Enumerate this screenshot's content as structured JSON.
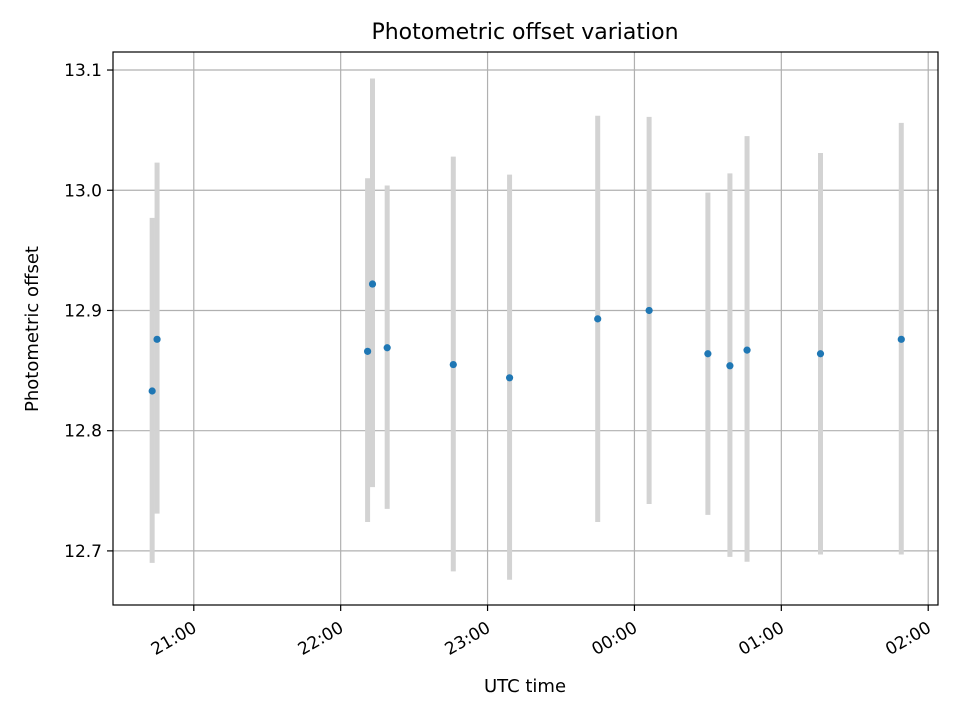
{
  "chart_data": {
    "type": "scatter",
    "title": "Photometric offset variation",
    "xlabel": "UTC time",
    "ylabel": "Photometric offset",
    "x_tick_labels": [
      "21:00",
      "22:00",
      "23:00",
      "00:00",
      "01:00",
      "02:00"
    ],
    "y_tick_labels": [
      "12.7",
      "12.8",
      "12.9",
      "13.0",
      "13.1"
    ],
    "ylim": [
      12.655,
      13.115
    ],
    "xlim": [
      "20:27",
      "02:04"
    ],
    "grid": true,
    "marker_color": "#1f77b4",
    "errorbar_color": "#d3d3d3",
    "points": [
      {
        "time": "20:43",
        "y": 12.833,
        "ylow": 12.69,
        "yhigh": 12.977
      },
      {
        "time": "20:45",
        "y": 12.876,
        "ylow": 12.731,
        "yhigh": 13.023
      },
      {
        "time": "22:11",
        "y": 12.866,
        "ylow": 12.724,
        "yhigh": 13.01
      },
      {
        "time": "22:13",
        "y": 12.922,
        "ylow": 12.753,
        "yhigh": 13.093
      },
      {
        "time": "22:19",
        "y": 12.869,
        "ylow": 12.735,
        "yhigh": 13.004
      },
      {
        "time": "22:46",
        "y": 12.855,
        "ylow": 12.683,
        "yhigh": 13.028
      },
      {
        "time": "23:09",
        "y": 12.844,
        "ylow": 12.676,
        "yhigh": 13.013
      },
      {
        "time": "23:45",
        "y": 12.893,
        "ylow": 12.724,
        "yhigh": 13.062
      },
      {
        "time": "00:06",
        "y": 12.9,
        "ylow": 12.739,
        "yhigh": 13.061
      },
      {
        "time": "00:30",
        "y": 12.864,
        "ylow": 12.73,
        "yhigh": 12.998
      },
      {
        "time": "00:39",
        "y": 12.854,
        "ylow": 12.695,
        "yhigh": 13.014
      },
      {
        "time": "00:46",
        "y": 12.867,
        "ylow": 12.691,
        "yhigh": 13.045
      },
      {
        "time": "01:16",
        "y": 12.864,
        "ylow": 12.697,
        "yhigh": 13.031
      },
      {
        "time": "01:49",
        "y": 12.876,
        "ylow": 12.697,
        "yhigh": 13.056
      }
    ]
  }
}
